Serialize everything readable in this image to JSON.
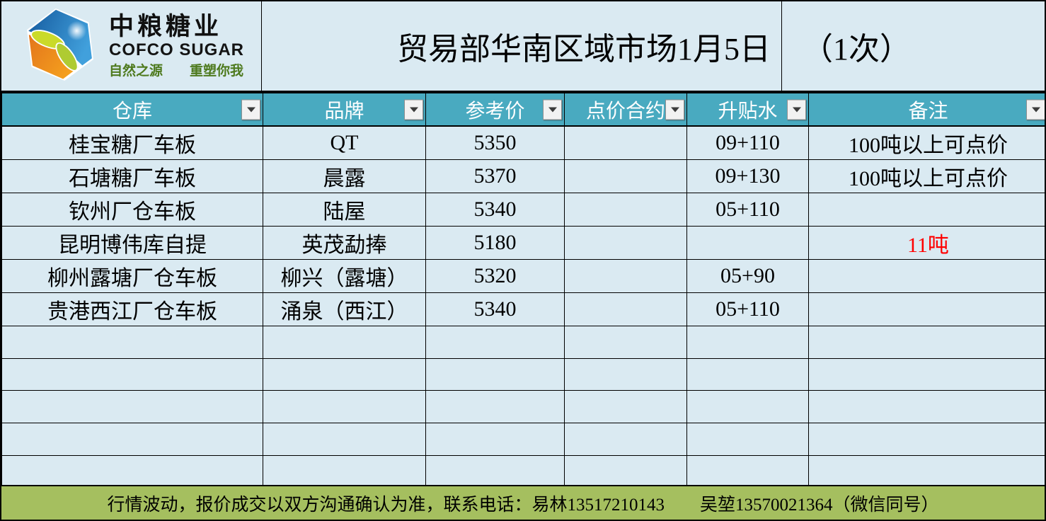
{
  "brand": {
    "name_cn": "中粮糖业",
    "name_en": "COFCO SUGAR",
    "slogan": "自然之源　　重塑你我",
    "logo": "cofco-hexagon-logo"
  },
  "title": {
    "main": "贸易部华南区域市场1月5日",
    "suffix": "（1次）"
  },
  "table": {
    "columns": [
      {
        "label": "仓库",
        "filter_icon": "chevron-down-icon"
      },
      {
        "label": "品牌",
        "filter_icon": "chevron-down-icon"
      },
      {
        "label": "参考价",
        "filter_icon": "chevron-down-icon"
      },
      {
        "label": "点价合约",
        "filter_icon": "chevron-down-icon"
      },
      {
        "label": "升贴水",
        "filter_icon": "chevron-down-icon"
      },
      {
        "label": "备注",
        "filter_icon": "chevron-down-icon"
      }
    ],
    "rows": [
      {
        "cells": [
          "桂宝糖厂车板",
          "QT",
          "5350",
          "",
          "09+110",
          "100吨以上可点价"
        ]
      },
      {
        "cells": [
          "石塘糖厂车板",
          "晨露",
          "5370",
          "",
          "09+130",
          "100吨以上可点价"
        ]
      },
      {
        "cells": [
          "钦州厂仓车板",
          "陆屋",
          "5340",
          "",
          "05+110",
          ""
        ]
      },
      {
        "cells": [
          "昆明博伟库自提",
          "英茂勐捧",
          "5180",
          "",
          "",
          "11吨"
        ],
        "note_red": true
      },
      {
        "cells": [
          "柳州露塘厂仓车板",
          "柳兴（露塘）",
          "5320",
          "",
          "05+90",
          ""
        ]
      },
      {
        "cells": [
          "贵港西江厂仓车板",
          "涌泉（西江）",
          "5340",
          "",
          "05+110",
          ""
        ]
      },
      {
        "cells": [
          "",
          "",
          "",
          "",
          "",
          ""
        ]
      },
      {
        "cells": [
          "",
          "",
          "",
          "",
          "",
          ""
        ]
      },
      {
        "cells": [
          "",
          "",
          "",
          "",
          "",
          ""
        ]
      },
      {
        "cells": [
          "",
          "",
          "",
          "",
          "",
          ""
        ]
      },
      {
        "cells": [
          "",
          "",
          "",
          "",
          "",
          ""
        ]
      }
    ]
  },
  "footer": {
    "notice": "行情波动，报价成交以双方沟通确认为准，联系电话：易林13517210143　　吴堃13570021364（微信同号）"
  },
  "colors": {
    "header_bg": "#49aac0",
    "row_bg": "#daeaf2",
    "footer_bg": "#a5bf5f",
    "note_red": "#ff0000",
    "slogan_green": "#4e7a1e",
    "grid_line": "#000000"
  }
}
